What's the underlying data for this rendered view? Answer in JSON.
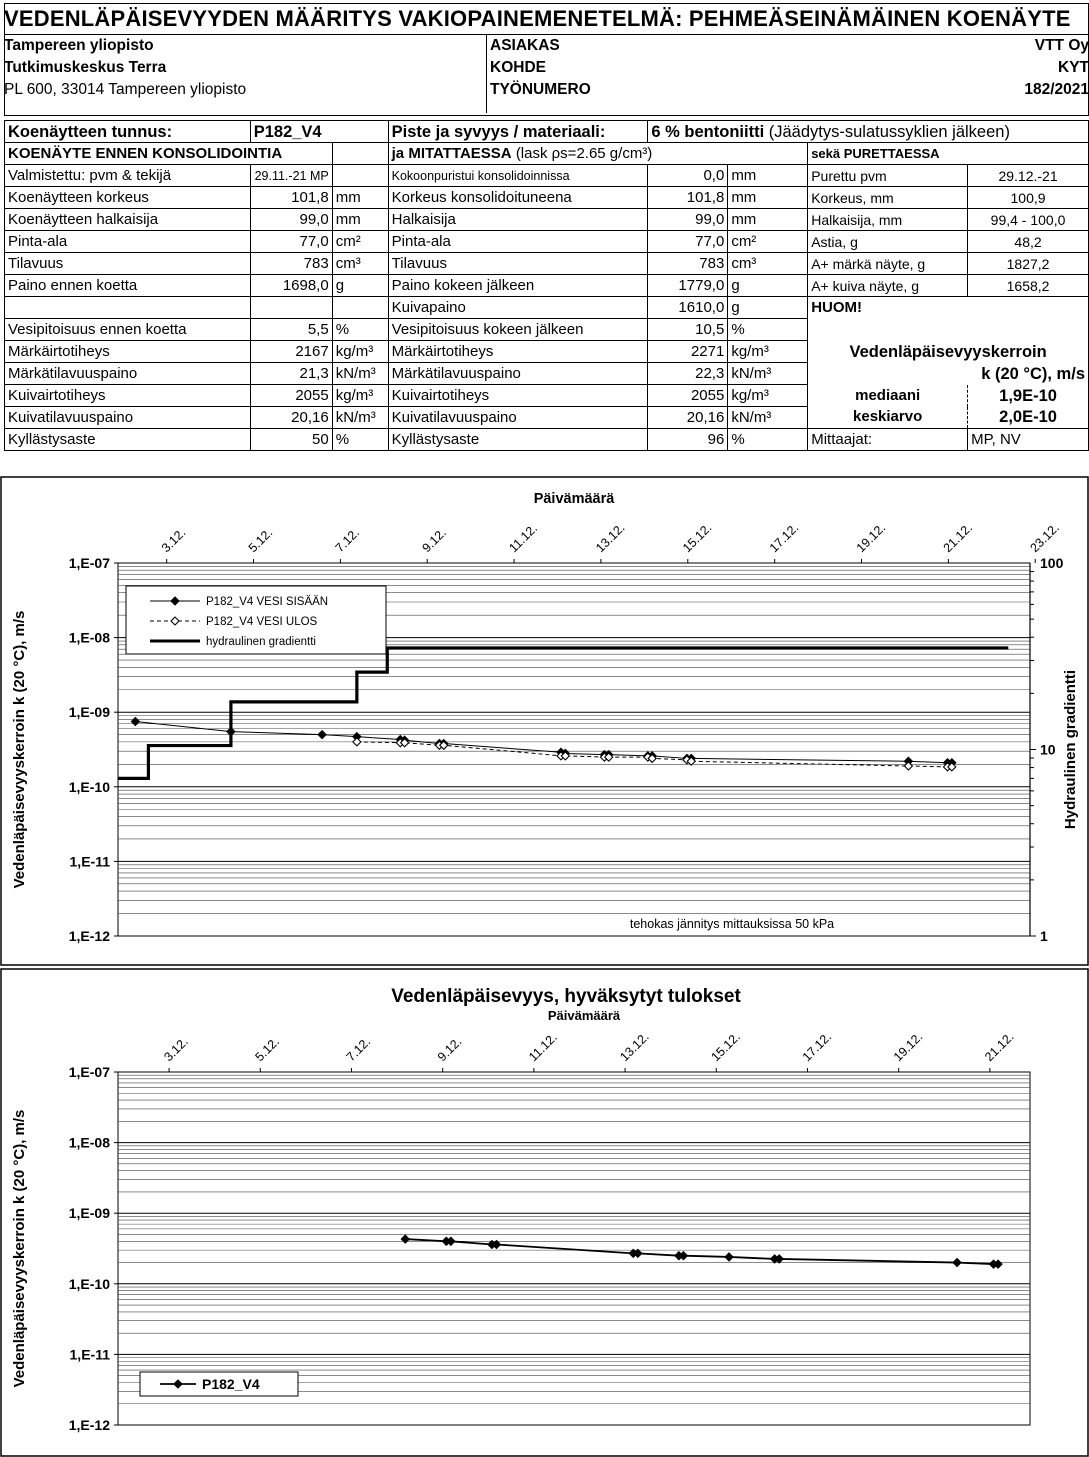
{
  "title": "VEDENLÄPÄISEVYYDEN MÄÄRITYS VAKIOPAINEMENETELMÄ: PEHMEÄSEINÄMÄINEN KOENÄYTE",
  "org": {
    "line1": "Tampereen yliopisto",
    "line2": "Tutkimuskeskus Terra",
    "line3": "PL 600,  33014 Tampereen yliopisto"
  },
  "client": {
    "asiakas_label": "ASIAKAS",
    "asiakas_value": "VTT Oy",
    "kohde_label": "KOHDE",
    "kohde_value": "KYT",
    "tyonumero_label": "TYÖNUMERO",
    "tyonumero_value": "182/2021"
  },
  "sample": {
    "id_label": "Koenäytteen tunnus:",
    "id_value": "P182_V4",
    "material_label": "Piste ja syvyys / materiaali:",
    "material_bold": "6 % bentoniitti",
    "material_rest": "(Jäädytys-sulatussyklien jälkeen)"
  },
  "sections": {
    "before": "KOENÄYTE ENNEN KONSOLIDOINTIA",
    "measuring_bold": "ja MITATTAESSA",
    "measuring_rest": "(lask ρs=2.65 g/cm³)",
    "dismantle": "sekä PURETTAESSA"
  },
  "before_rows": [
    {
      "label": "Valmistettu: pvm & tekijä",
      "value": "29.11.-21 MP",
      "unit": ""
    },
    {
      "label": "Koenäytteen korkeus",
      "value": "101,8",
      "unit": "mm"
    },
    {
      "label": "Koenäytteen halkaisija",
      "value": "99,0",
      "unit": "mm"
    },
    {
      "label": "Pinta-ala",
      "value": "77,0",
      "unit": "cm²"
    },
    {
      "label": "Tilavuus",
      "value": "783",
      "unit": "cm³"
    },
    {
      "label": "Paino ennen koetta",
      "value": "1698,0",
      "unit": "g"
    },
    {
      "label": "",
      "value": "",
      "unit": ""
    },
    {
      "label": "Vesipitoisuus ennen koetta",
      "value": "5,5",
      "unit": "%"
    },
    {
      "label": "Märkäirtotiheys",
      "value": "2167",
      "unit": "kg/m³"
    },
    {
      "label": "Märkätilavuuspaino",
      "value": "21,3",
      "unit": "kN/m³"
    },
    {
      "label": "Kuivairtotiheys",
      "value": "2055",
      "unit": "kg/m³"
    },
    {
      "label": "Kuivatilavuuspaino",
      "value": "20,16",
      "unit": "kN/m³"
    },
    {
      "label": "Kyllästysaste",
      "value": "50",
      "unit": "%"
    }
  ],
  "measure_rows": [
    {
      "label": "Kokoonpuristui konsolidoinnissa",
      "value": "0,0",
      "unit": "mm"
    },
    {
      "label": "Korkeus konsolidoituneena",
      "value": "101,8",
      "unit": "mm"
    },
    {
      "label": "Halkaisija",
      "value": "99,0",
      "unit": "mm"
    },
    {
      "label": "Pinta-ala",
      "value": "77,0",
      "unit": "cm²"
    },
    {
      "label": "Tilavuus",
      "value": "783",
      "unit": "cm³"
    },
    {
      "label": "Paino kokeen jälkeen",
      "value": "1779,0",
      "unit": "g"
    },
    {
      "label": "Kuivapaino",
      "value": "1610,0",
      "unit": "g"
    },
    {
      "label": "Vesipitoisuus kokeen jälkeen",
      "value": "10,5",
      "unit": "%"
    },
    {
      "label": "Märkäirtotiheys",
      "value": "2271",
      "unit": "kg/m³"
    },
    {
      "label": "Märkätilavuuspaino",
      "value": "22,3",
      "unit": "kN/m³"
    },
    {
      "label": "Kuivairtotiheys",
      "value": "2055",
      "unit": "kg/m³"
    },
    {
      "label": "Kuivatilavuuspaino",
      "value": "20,16",
      "unit": "kN/m³"
    },
    {
      "label": "Kyllästysaste",
      "value": "96",
      "unit": "%"
    }
  ],
  "dismantle_rows": [
    {
      "label": "Purettu pvm",
      "value": "29.12.-21"
    },
    {
      "label": "Korkeus, mm",
      "value": "100,9"
    },
    {
      "label": "Halkaisija, mm",
      "value": "99,4 - 100,0"
    },
    {
      "label": "Astia, g",
      "value": "48,2"
    },
    {
      "label": "A+ märkä näyte, g",
      "value": "1827,2"
    },
    {
      "label": "A+ kuiva näyte, g",
      "value": "1658,2"
    }
  ],
  "note_label": "HUOM!",
  "k_box": {
    "title": "Vedenläpäisevyyskerroin",
    "unit": "k (20 °C),  m/s",
    "median_label": "mediaani",
    "median_value": "1,9E-10",
    "mean_label": "keskiarvo",
    "mean_value": "2,0E-10"
  },
  "measurers_label": "Mittaajat:",
  "measurers_value": "MP, NV",
  "chart_data": [
    {
      "type": "line",
      "title": "Päivämäärä",
      "xlabel": "Päivämäärä",
      "ylabel": "Vedenläpäisevyyskerroin k (20 °C), m/s",
      "y2label": "Hydraulinen gradientti",
      "yscale": "log",
      "ylim": [
        1e-12,
        1e-07
      ],
      "y_ticks": [
        "1,E-07",
        "1,E-08",
        "1,E-09",
        "1,E-10",
        "1,E-11",
        "1,E-12"
      ],
      "y2scale": "log",
      "y2lim": [
        1,
        100
      ],
      "y2_ticks": [
        "100",
        "10",
        "1"
      ],
      "xlim": [
        "2021-12-02",
        "2021-12-23"
      ],
      "x_ticks": [
        "3.12.",
        "5.12.",
        "7.12.",
        "9.12.",
        "11.12.",
        "13.12.",
        "15.12.",
        "17.12.",
        "19.12.",
        "21.12.",
        "23.12."
      ],
      "annotation": "tehokas jännitys mittauksissa 50 kPa",
      "legend_position": "top-left",
      "series": [
        {
          "name": "P182_V4 VESI SISÄÄN",
          "style": "solid-filled-diamond",
          "x": [
            "2021-12-02.4",
            "2021-12-04.6",
            "2021-12-06.7",
            "2021-12-07.5",
            "2021-12-08.5",
            "2021-12-08.6",
            "2021-12-09.4",
            "2021-12-09.5",
            "2021-12-12.2",
            "2021-12-12.3",
            "2021-12-13.2",
            "2021-12-13.3",
            "2021-12-14.2",
            "2021-12-14.3",
            "2021-12-15.1",
            "2021-12-15.2",
            "2021-12-20.2",
            "2021-12-21.1",
            "2021-12-21.2"
          ],
          "y": [
            7.5e-10,
            5.5e-10,
            5e-10,
            4.7e-10,
            4.3e-10,
            4.2e-10,
            3.8e-10,
            3.8e-10,
            2.9e-10,
            2.8e-10,
            2.7e-10,
            2.7e-10,
            2.6e-10,
            2.6e-10,
            2.4e-10,
            2.4e-10,
            2.2e-10,
            2.1e-10,
            2.1e-10
          ]
        },
        {
          "name": "P182_V4 VESI   ULOS",
          "style": "dashed-open-diamond",
          "x": [
            "2021-12-07.5",
            "2021-12-08.5",
            "2021-12-08.6",
            "2021-12-09.4",
            "2021-12-09.5",
            "2021-12-12.2",
            "2021-12-12.3",
            "2021-12-13.2",
            "2021-12-13.3",
            "2021-12-14.2",
            "2021-12-14.3",
            "2021-12-15.1",
            "2021-12-15.2",
            "2021-12-20.2",
            "2021-12-21.1",
            "2021-12-21.2"
          ],
          "y": [
            4e-10,
            3.9e-10,
            3.9e-10,
            3.6e-10,
            3.6e-10,
            2.6e-10,
            2.6e-10,
            2.5e-10,
            2.5e-10,
            2.5e-10,
            2.4e-10,
            2.3e-10,
            2.2e-10,
            1.9e-10,
            1.85e-10,
            1.85e-10
          ]
        },
        {
          "name": "hydraulinen gradientti",
          "style": "thick-step",
          "axis": "y2",
          "x": [
            "2021-12-02",
            "2021-12-02.7",
            "2021-12-04.6",
            "2021-12-07.5",
            "2021-12-08.2",
            "2021-12-22.5"
          ],
          "y": [
            7,
            10.5,
            18,
            26,
            35,
            35
          ]
        }
      ]
    },
    {
      "type": "line",
      "title": "Vedenläpäisevyys, hyväksytyt tulokset",
      "xlabel": "Päivämäärä",
      "ylabel": "Vedenläpäisevyyskerroin k (20 °C), m/s",
      "yscale": "log",
      "ylim": [
        1e-12,
        1e-07
      ],
      "y_ticks": [
        "1,E-07",
        "1,E-08",
        "1,E-09",
        "1,E-10",
        "1,E-11",
        "1,E-12"
      ],
      "xlim": [
        "2021-12-02",
        "2021-12-22"
      ],
      "x_ticks": [
        "3.12.",
        "5.12.",
        "7.12.",
        "9.12.",
        "11.12.",
        "13.12.",
        "15.12.",
        "17.12.",
        "19.12.",
        "21.12."
      ],
      "legend_position": "bottom-left",
      "series": [
        {
          "name": "P182_V4",
          "x": [
            "2021-12-08.3",
            "2021-12-09.2",
            "2021-12-09.3",
            "2021-12-10.2",
            "2021-12-10.3",
            "2021-12-13.3",
            "2021-12-13.4",
            "2021-12-14.3",
            "2021-12-14.4",
            "2021-12-15.4",
            "2021-12-16.4",
            "2021-12-16.5",
            "2021-12-20.4",
            "2021-12-21.2",
            "2021-12-21.3"
          ],
          "y": [
            4.3e-10,
            4e-10,
            4e-10,
            3.6e-10,
            3.6e-10,
            2.7e-10,
            2.7e-10,
            2.5e-10,
            2.5e-10,
            2.4e-10,
            2.25e-10,
            2.25e-10,
            2e-10,
            1.9e-10,
            1.9e-10
          ]
        }
      ]
    }
  ]
}
